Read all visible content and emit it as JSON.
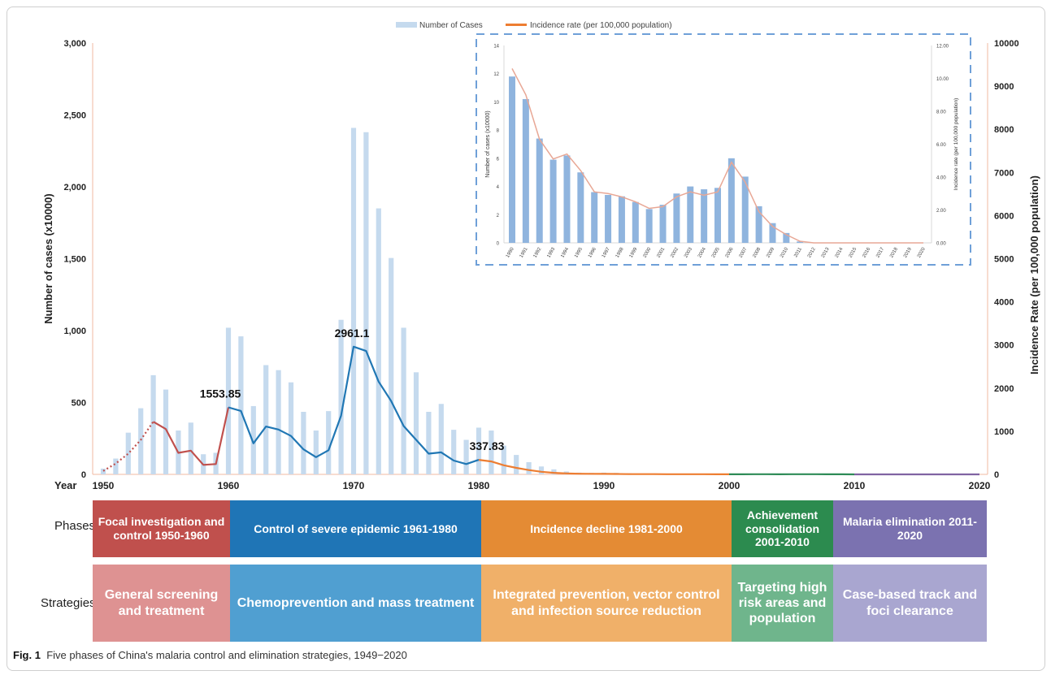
{
  "figure": {
    "caption_label": "Fig. 1",
    "caption_text": "Five phases of China's malaria control and elimination strategies, 1949−2020"
  },
  "chart_data": [
    {
      "type": "bar+line",
      "legend": {
        "position": "top",
        "entries": [
          "Number of Cases",
          "Incidence rate  (per 100,000 population)"
        ]
      },
      "ylabel": "Number of cases (x10000)",
      "y2label": "Incidence Rate  (per 100,000 population)",
      "xlabel": "Year",
      "ylim": [
        0,
        3000
      ],
      "y2lim": [
        0,
        10000
      ],
      "yticks": [
        "0",
        "500",
        "1,000",
        "1,500",
        "2,000",
        "2,500",
        "3,000"
      ],
      "y2ticks": [
        "0",
        "1000",
        "2000",
        "3000",
        "4000",
        "5000",
        "6000",
        "7000",
        "8000",
        "9000",
        "10000"
      ],
      "xticks": [
        "1950",
        "1960",
        "1970",
        "1980",
        "1990",
        "2000",
        "2010",
        "2020"
      ],
      "bar_color": "#c5daee",
      "years": [
        1950,
        1951,
        1952,
        1953,
        1954,
        1955,
        1956,
        1957,
        1958,
        1959,
        1960,
        1961,
        1962,
        1963,
        1964,
        1965,
        1966,
        1967,
        1968,
        1969,
        1970,
        1971,
        1972,
        1973,
        1974,
        1975,
        1976,
        1977,
        1978,
        1979,
        1980,
        1981,
        1982,
        1983,
        1984,
        1985,
        1986,
        1987,
        1988,
        1989,
        1990,
        1991,
        1992,
        1993,
        1994,
        1995,
        1996,
        1997,
        1998,
        1999,
        2000,
        2001,
        2002,
        2003,
        2004,
        2005,
        2006,
        2007,
        2008,
        2009,
        2010,
        2011,
        2012,
        2013,
        2014,
        2015,
        2016,
        2017,
        2018,
        2019,
        2020
      ],
      "cases": [
        40,
        110,
        290,
        460,
        690,
        590,
        305,
        360,
        140,
        150,
        1020,
        960,
        475,
        760,
        725,
        640,
        435,
        305,
        440,
        1075,
        2410,
        2380,
        1850,
        1505,
        1020,
        710,
        435,
        490,
        310,
        240,
        325,
        305,
        200,
        135,
        85,
        55,
        35,
        20,
        12,
        10,
        12,
        10,
        7,
        6,
        6,
        5,
        4,
        3,
        3,
        3,
        2,
        3,
        3,
        4,
        4,
        4,
        6,
        5,
        3,
        1,
        1,
        0,
        0,
        0,
        0,
        0,
        0,
        0,
        0,
        0,
        0
      ],
      "incidence_series": [
        {
          "name": "1950-1960 (estimated)",
          "style": "dotted",
          "color": "#c0504d",
          "years": [
            1950,
            1951,
            1952,
            1953,
            1954
          ],
          "values": [
            80,
            250,
            480,
            800,
            1220
          ]
        },
        {
          "name": "1950-1960",
          "style": "solid",
          "color": "#c0504d",
          "years": [
            1954,
            1955,
            1956,
            1957,
            1958,
            1959,
            1960
          ],
          "values": [
            1220,
            1050,
            500,
            550,
            220,
            240,
            1553.85
          ]
        },
        {
          "name": "1961-1980",
          "style": "solid",
          "color": "#2077b4",
          "years": [
            1960,
            1961,
            1962,
            1963,
            1964,
            1965,
            1966,
            1967,
            1968,
            1969,
            1970,
            1971,
            1972,
            1973,
            1974,
            1975,
            1976,
            1977,
            1978,
            1979,
            1980
          ],
          "values": [
            1553.85,
            1470,
            720,
            1110,
            1040,
            890,
            580,
            400,
            560,
            1360,
            2961.1,
            2860,
            2150,
            1700,
            1120,
            800,
            480,
            510,
            320,
            240,
            337.83
          ]
        },
        {
          "name": "1981-2000",
          "style": "solid",
          "color": "#ed7d31",
          "years": [
            1980,
            1981,
            1982,
            1983,
            1984,
            1985,
            1986,
            1987,
            1988,
            1989,
            1990,
            1991,
            1992,
            1993,
            1994,
            1995,
            1996,
            1997,
            1998,
            1999,
            2000
          ],
          "values": [
            337.83,
            300,
            210,
            150,
            100,
            60,
            35,
            22,
            16,
            13,
            11.0,
            9.0,
            6.3,
            5.2,
            5.4,
            4.5,
            3.3,
            3.1,
            3.0,
            2.7,
            2.3
          ]
        },
        {
          "name": "2001-2010",
          "style": "solid",
          "color": "#2e8b57",
          "years": [
            2000,
            2001,
            2002,
            2003,
            2004,
            2005,
            2006,
            2007,
            2008,
            2009,
            2010
          ],
          "values": [
            2.3,
            2.4,
            2.9,
            3.1,
            2.8,
            2.9,
            4.7,
            3.9,
            2.0,
            1.1,
            0.6
          ]
        },
        {
          "name": "2011-2020",
          "style": "solid",
          "color": "#8064a2",
          "years": [
            2010,
            2011,
            2012,
            2013,
            2014,
            2015,
            2016,
            2017,
            2018,
            2019,
            2020
          ],
          "values": [
            0.6,
            0.2,
            0.1,
            0.1,
            0.1,
            0.1,
            0.1,
            0.1,
            0.1,
            0,
            0
          ]
        }
      ],
      "annotations": [
        {
          "text": "1553.85",
          "year": 1960,
          "value": 1553.85
        },
        {
          "text": "2961.1",
          "year": 1970,
          "value": 2961.1
        },
        {
          "text": "337.83",
          "year": 1980,
          "value": 337.83
        }
      ]
    },
    {
      "type": "bar+line",
      "ylabel": "Number of cases (x10000)",
      "y2label": "Incidence rate  (per 100,000 population)",
      "ylim": [
        0,
        14
      ],
      "y2lim": [
        0,
        12
      ],
      "yticks": [
        "0",
        "2",
        "4",
        "6",
        "8",
        "10",
        "12",
        "14"
      ],
      "y2ticks": [
        "0.00",
        "2.00",
        "4.00",
        "6.00",
        "8.00",
        "10.00",
        "12.00"
      ],
      "categories": [
        "1990",
        "1991",
        "1992",
        "1993",
        "1994",
        "1995",
        "1996",
        "1997",
        "1998",
        "1999",
        "2000",
        "2001",
        "2002",
        "2003",
        "2004",
        "2005",
        "2006",
        "2007",
        "2008",
        "2009",
        "2010",
        "2011",
        "2012",
        "2013",
        "2014",
        "2015",
        "2016",
        "2017",
        "2018",
        "2019",
        "2020"
      ],
      "cases": [
        11.8,
        10.2,
        7.4,
        5.9,
        6.2,
        5.0,
        3.6,
        3.4,
        3.3,
        2.9,
        2.4,
        2.7,
        3.5,
        4.0,
        3.8,
        3.9,
        6.0,
        4.7,
        2.6,
        1.4,
        0.7,
        0.1,
        0,
        0,
        0,
        0,
        0,
        0,
        0,
        0,
        0
      ],
      "incidence": [
        10.6,
        9.0,
        6.3,
        5.1,
        5.4,
        4.4,
        3.1,
        3.0,
        2.8,
        2.5,
        2.1,
        2.2,
        2.8,
        3.1,
        2.9,
        3.1,
        4.9,
        3.7,
        1.9,
        1.0,
        0.5,
        0.1,
        0,
        0,
        0,
        0,
        0,
        0,
        0,
        0,
        0
      ],
      "bar_color": "#8fb4de",
      "line_color": "#e8a795"
    }
  ],
  "phases": {
    "row_label": "Phases",
    "items": [
      {
        "label": "Focal investigation and control 1950-1960",
        "color": "#c0504d"
      },
      {
        "label": "Control of severe epidemic 1961-1980",
        "color": "#1f75b6"
      },
      {
        "label": "Incidence decline 1981-2000",
        "color": "#e48b34"
      },
      {
        "label": "Achievement consolidation 2001-2010",
        "color": "#2c8b4f"
      },
      {
        "label": "Malaria elimination 2011-2020",
        "color": "#7b72b0"
      }
    ]
  },
  "strategies": {
    "row_label": "Strategies",
    "items": [
      {
        "label": "General screening  and treatment",
        "color": "#de9292"
      },
      {
        "label": "Chemoprevention and mass treatment",
        "color": "#509fd1"
      },
      {
        "label": "Integrated prevention, vector control and infection source reduction",
        "color": "#f0b069"
      },
      {
        "label": "Targeting high risk areas and population",
        "color": "#6fb58c"
      },
      {
        "label": "Case-based track and foci clearance",
        "color": "#a9a6d0"
      }
    ]
  }
}
